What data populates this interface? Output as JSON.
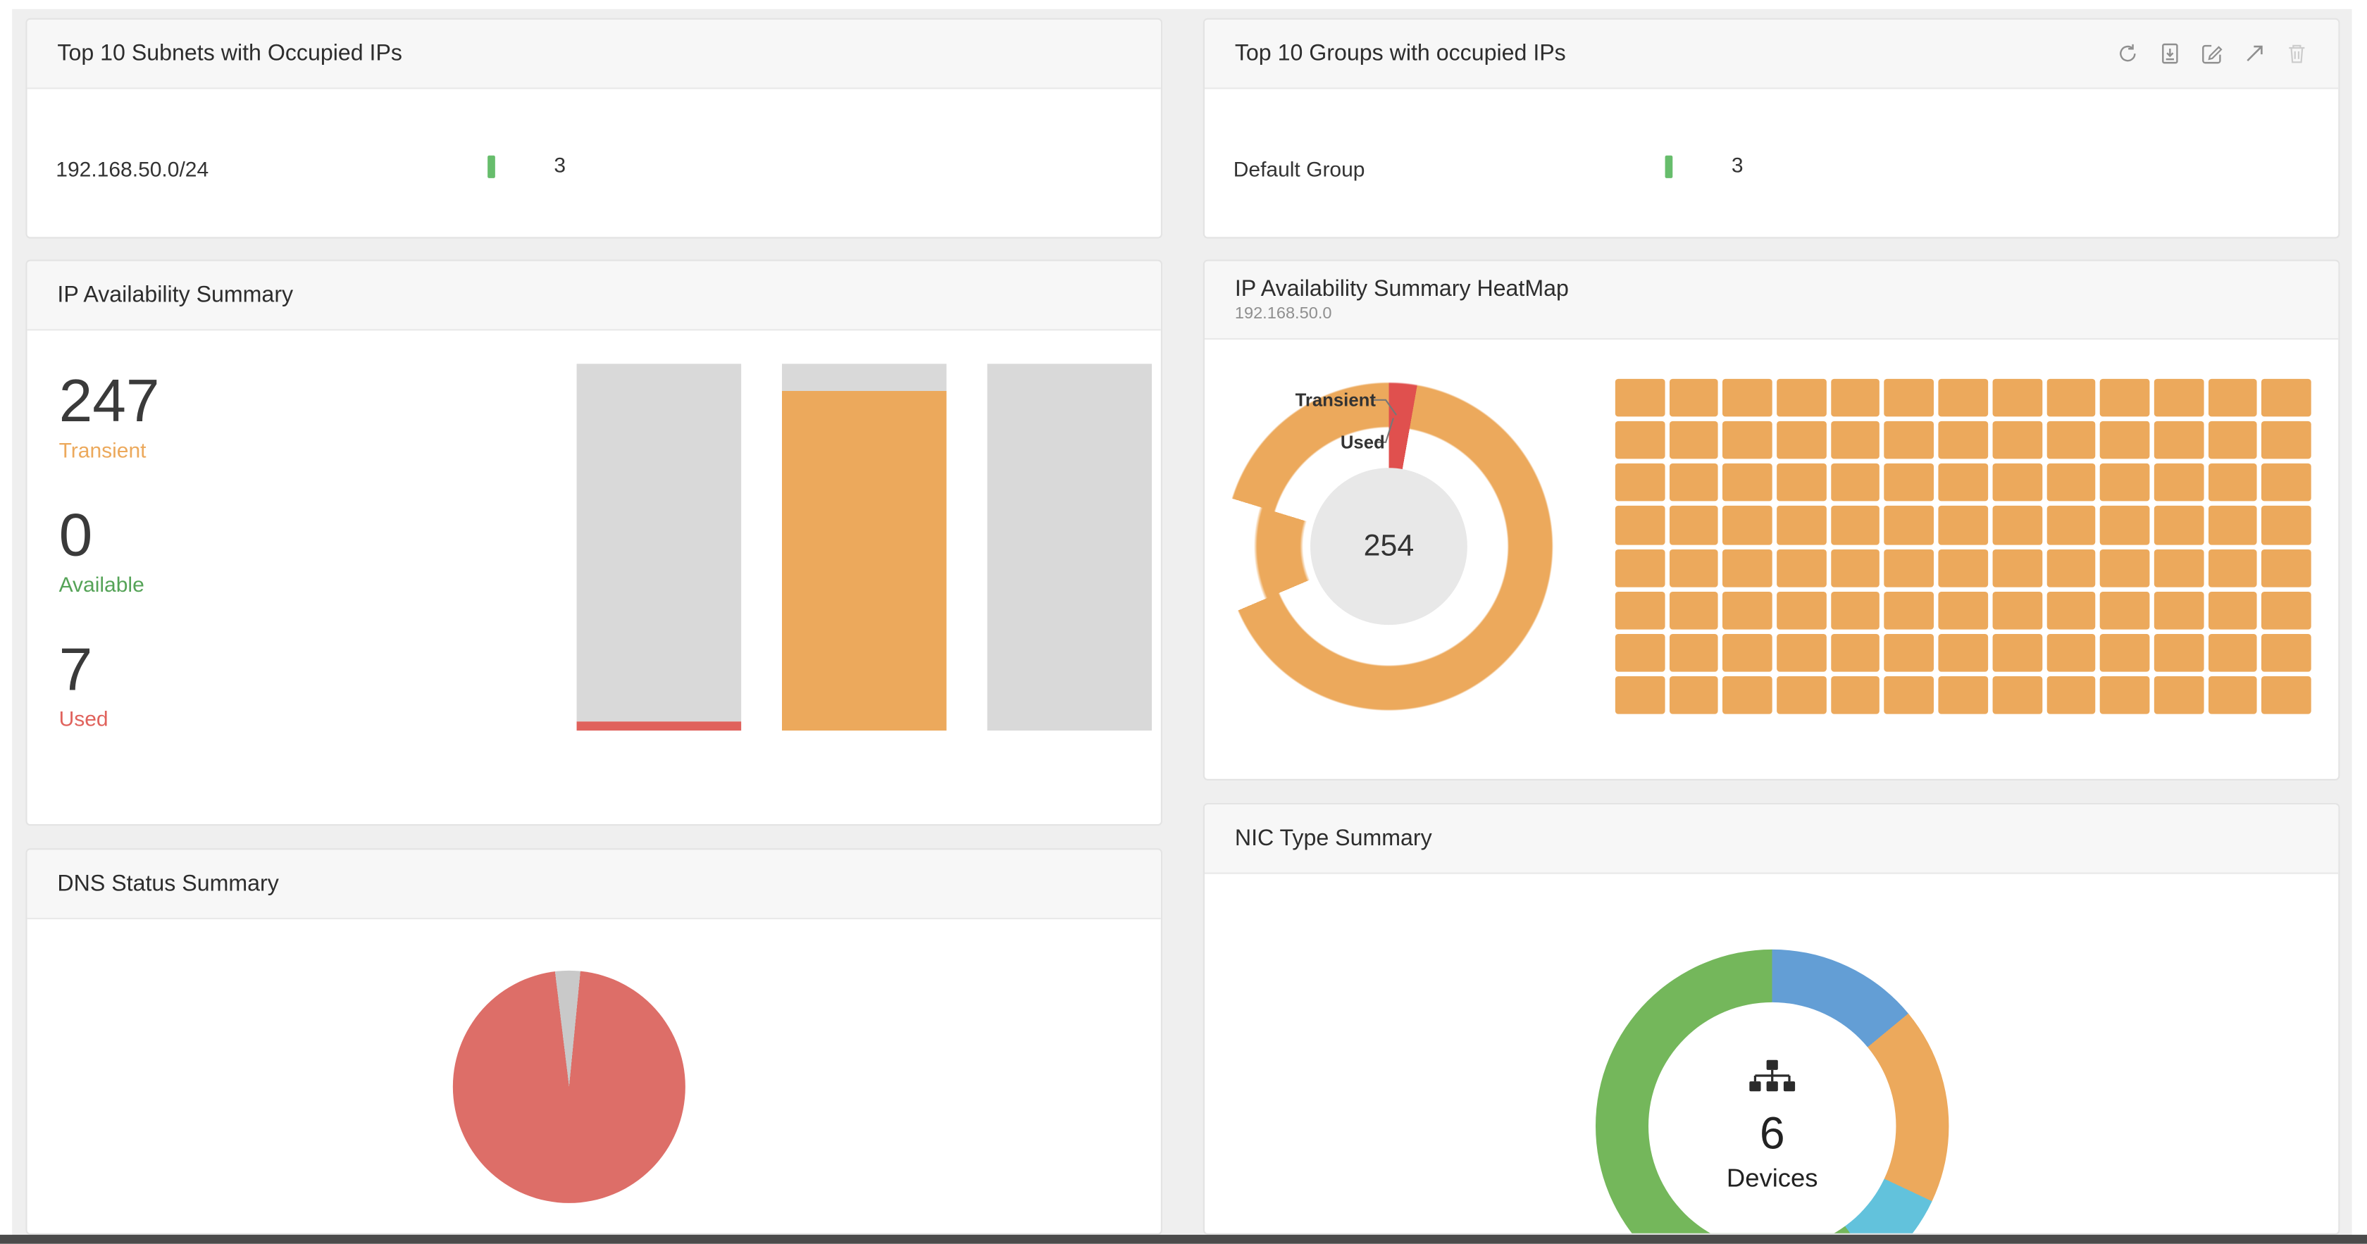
{
  "page": {
    "bg_color": "#efefef",
    "bottom_bar_color": "#4b4b4b"
  },
  "colors": {
    "transient_orange": "#ECA95C",
    "available_green": "#55A357",
    "used_red": "#E0625C",
    "bar_gray": "#D9D9D9",
    "mini_bar_green": "#67BD6C",
    "pie_gray": "#C9C9C9",
    "pie_red": "#DD6E68",
    "donut_center_gray": "#E8E8E8"
  },
  "cards": {
    "subnets": {
      "title": "Top 10 Subnets with Occupied IPs",
      "rows": [
        {
          "label": "192.168.50.0/24",
          "value": "3"
        }
      ]
    },
    "groups": {
      "title": "Top 10 Groups with occupied IPs",
      "rows": [
        {
          "label": "Default Group",
          "value": "3"
        }
      ],
      "toolbar_icons": [
        "refresh-icon",
        "export-icon",
        "edit-icon",
        "expand-icon",
        "delete-icon"
      ]
    },
    "availability": {
      "title": "IP Availability Summary",
      "stats": [
        {
          "value": "247",
          "label": "Transient",
          "color": "#ECA95C"
        },
        {
          "value": "0",
          "label": "Available",
          "color": "#55A357"
        },
        {
          "value": "7",
          "label": "Used",
          "color": "#E0625C"
        }
      ]
    },
    "heatmap": {
      "title": "IP Availability Summary HeatMap",
      "subtitle": "192.168.50.0",
      "center_total": "254",
      "label_transient": "Transient",
      "label_used": "Used"
    },
    "dns": {
      "title": "DNS Status Summary"
    },
    "nic": {
      "title": "NIC Type Summary",
      "center_value": "6",
      "center_label": "Devices"
    }
  },
  "chart_data": [
    {
      "id": "subnets-occupied",
      "type": "bar",
      "title": "Top 10 Subnets with Occupied IPs",
      "categories": [
        "192.168.50.0/24"
      ],
      "values": [
        3
      ],
      "bar_color": "#67BD6C"
    },
    {
      "id": "groups-occupied",
      "type": "bar",
      "title": "Top 10 Groups with occupied IPs",
      "categories": [
        "Default Group"
      ],
      "values": [
        3
      ],
      "bar_color": "#67BD6C"
    },
    {
      "id": "ip-availability-summary",
      "type": "bar",
      "stacked": true,
      "title": "IP Availability Summary",
      "totals": {
        "Transient": 247,
        "Available": 0,
        "Used": 7
      },
      "bars": [
        {
          "segments": [
            {
              "color": "#D9D9D9",
              "pct": 97.5
            },
            {
              "color": "#E0625C",
              "pct": 2.5
            }
          ]
        },
        {
          "segments": [
            {
              "color": "#D9D9D9",
              "pct": 7.5
            },
            {
              "color": "#ECA95C",
              "pct": 92.5
            }
          ]
        },
        {
          "segments": [
            {
              "color": "#D9D9D9",
              "pct": 100
            }
          ]
        }
      ]
    },
    {
      "id": "heatmap-donut",
      "type": "pie",
      "title": "IP Availability Summary HeatMap",
      "subtitle": "192.168.50.0",
      "total": 254,
      "slices": [
        {
          "name": "Transient",
          "value": 247,
          "color": "#ECA95C"
        },
        {
          "name": "Used",
          "value": 7,
          "color": "#E0504E"
        }
      ],
      "ring_segments": [
        {
          "color": "#E0504E",
          "from": 0,
          "to": 10
        },
        {
          "color": "#ECA95C",
          "from": 10,
          "to": 247
        },
        {
          "color": "transparent",
          "from": 247,
          "to": 287
        },
        {
          "color": "#ECA95C",
          "from": 287,
          "to": 360
        }
      ],
      "used_wedge_segments": [
        {
          "color": "#E0504E",
          "from": 0,
          "to": 10
        },
        {
          "color": "transparent",
          "from": 10,
          "to": 360
        }
      ],
      "inner_arc_segments": [
        {
          "color": "transparent",
          "from": 0,
          "to": 247
        },
        {
          "color": "#ECA95C",
          "from": 247,
          "to": 287
        },
        {
          "color": "transparent",
          "from": 287,
          "to": 360
        }
      ]
    },
    {
      "id": "heatmap-grid",
      "type": "heatmap",
      "cols": 13,
      "rows": 8,
      "cell_color": "#ECA95C",
      "cell_status": "Transient"
    },
    {
      "id": "dns-status",
      "type": "pie",
      "title": "DNS Status Summary",
      "start_deg": -7,
      "slices": [
        {
          "color": "#C9C9C9",
          "pct": 3.5
        },
        {
          "color": "#DD6E68",
          "pct": 96.5
        }
      ]
    },
    {
      "id": "nic-type",
      "type": "donut",
      "title": "NIC Type Summary",
      "center_value": "6",
      "center_label": "Devices",
      "slices": [
        {
          "color": "#639ED5",
          "pct": 14
        },
        {
          "color": "#ECA95C",
          "pct": 18
        },
        {
          "color": "#62C2DC",
          "pct": 8
        },
        {
          "color": "#74B75B",
          "pct": 60
        }
      ]
    }
  ]
}
